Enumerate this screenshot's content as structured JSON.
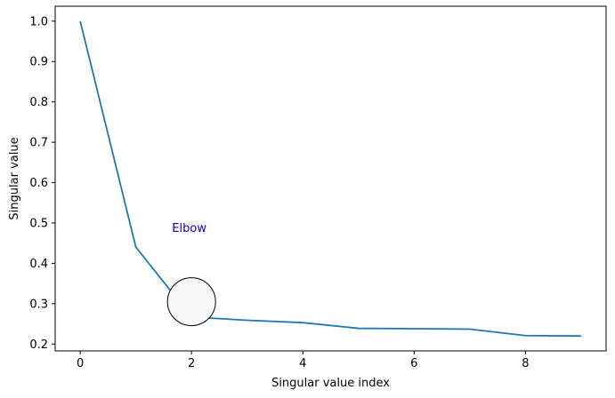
{
  "chart_data": {
    "type": "line",
    "title": "",
    "xlabel": "Singular value index",
    "ylabel": "Singular value",
    "xlim": [
      -0.45,
      9.45
    ],
    "ylim": [
      0.183,
      1.037
    ],
    "xticks": [
      0,
      2,
      4,
      6,
      8
    ],
    "yticks": [
      0.2,
      0.3,
      0.4,
      0.5,
      0.6,
      0.7,
      0.8,
      0.9,
      1.0
    ],
    "grid": false,
    "legend": "none",
    "series": [
      {
        "color": "#1f77b4",
        "x": [
          0,
          1,
          2,
          3,
          4,
          5,
          6,
          7,
          8,
          9
        ],
        "y": [
          1.0,
          0.44,
          0.267,
          0.259,
          0.253,
          0.239,
          0.238,
          0.237,
          0.221,
          0.22
        ]
      }
    ],
    "annotation": {
      "text": "Elbow",
      "color": "#0000cc",
      "text_x": 1.65,
      "text_y": 0.478,
      "marker": "circle",
      "marker_x": 2,
      "marker_y": 0.305,
      "marker_fill": "#f7f7f7",
      "marker_edge": "#000000"
    }
  }
}
